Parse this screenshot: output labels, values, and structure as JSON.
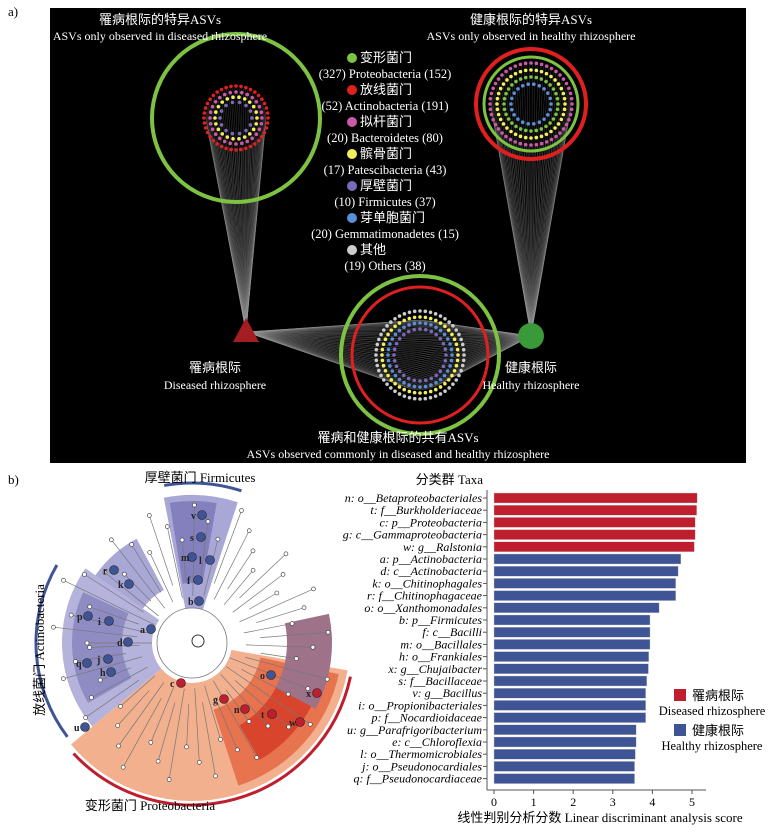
{
  "panel_a": {
    "label": "a)",
    "diseased_specific_title_cn": "罹病根际的特异ASVs",
    "diseased_specific_title_en": "ASVs only observed in diseased rhizosphere",
    "healthy_specific_title_cn": "健康根际的特异ASVs",
    "healthy_specific_title_en": "ASVs only observed in healthy rhizosphere",
    "diseased_node_cn": "罹病根际",
    "diseased_node_en": "Diseased rhizosphere",
    "healthy_node_cn": "健康根际",
    "healthy_node_en": "Healthy rhizosphere",
    "shared_title_cn": "罹病和健康根际的共有ASVs",
    "shared_title_en": "ASVs observed commonly in diseased and healthy rhizosphere",
    "legend": [
      {
        "cn": "变形菌门",
        "en": "(327) Proteobacteria (152)",
        "color": "#7dc242"
      },
      {
        "cn": "放线菌门",
        "en": "(52) Actinobacteria (191)",
        "color": "#e02020"
      },
      {
        "cn": "拟杆菌门",
        "en": "(20) Bacteroidetes (80)",
        "color": "#c85aa8"
      },
      {
        "cn": "髌骨菌门",
        "en": "(17) Patescibacteria (43)",
        "color": "#f2ef5a"
      },
      {
        "cn": "厚壁菌门",
        "en": "(10) Firmicutes (37)",
        "color": "#7a6ab8"
      },
      {
        "cn": "芽单胞菌门",
        "en": "(20) Gemmatimonadetes (15)",
        "color": "#5b8ed8"
      },
      {
        "cn": "其他",
        "en": "(19) Others (38)",
        "color": "#cccccc"
      }
    ]
  },
  "panel_b": {
    "label": "b)",
    "firmicutes_label": "厚壁菌门 Firmicutes",
    "actinobacteria_label": "放线菌门 Actinobacteria",
    "proteobacteria_label": "变形菌门 Proteobacteria",
    "clade_letters": [
      "a",
      "b",
      "c",
      "d",
      "f",
      "g",
      "h",
      "i",
      "j",
      "k",
      "l",
      "m",
      "n",
      "o",
      "p",
      "q",
      "r",
      "s",
      "t",
      "u",
      "v",
      "w",
      "x"
    ],
    "colors": {
      "diseased": "#bf1e2e",
      "healthy": "#3f5494"
    }
  },
  "chart_data": {
    "type": "bar",
    "orientation": "horizontal",
    "title": "分类群 Taxa",
    "xlabel": "线性判别分析分数 Linear discriminant analysis score",
    "xlim": [
      0,
      5.3
    ],
    "xticks": [
      "0",
      "1",
      "2",
      "3",
      "4",
      "5"
    ],
    "legend": [
      {
        "cn": "罹病根际",
        "en": "Diseased rhizosphere",
        "color": "#bf1e2e"
      },
      {
        "cn": "健康根际",
        "en": "Healthy rhizosphere",
        "color": "#3f5494"
      }
    ],
    "legend_position": "right",
    "categories": [
      "n: o__Betaproteobacteriales",
      "t: f__Burkholderiaceae",
      "c: p__Proteobacteria",
      "g: c__Gammaproteobacteria",
      "w: g__Ralstonia",
      "a: p__Actinobacteria",
      "d: c__Actinobacteria",
      "k: o__Chitinophagales",
      "r: f__Chitinophagaceae",
      "o: o__Xanthomonadales",
      "b: p__Firmicutes",
      "f: c__Bacilli",
      "m: o__Bacillales",
      "h: o__Frankiales",
      "x: g__Chujaibacter",
      "s: f__Bacillaceae",
      "v: g__Bacillus",
      "i: o__Propionibacteriales",
      "p: f__Nocardioidaceae",
      "u: g__Parafrigoribacterium",
      "e: c__Chloroflexia",
      "l: o__Thermomicrobiales",
      "j: o__Pseudonocardiales",
      "q: f__Pseudonocardiaceae"
    ],
    "values": [
      5.13,
      5.12,
      5.08,
      5.08,
      5.06,
      4.72,
      4.65,
      4.59,
      4.59,
      4.17,
      3.94,
      3.94,
      3.94,
      3.91,
      3.9,
      3.86,
      3.83,
      3.83,
      3.83,
      3.59,
      3.59,
      3.57,
      3.55,
      3.55
    ],
    "groups": [
      "diseased",
      "diseased",
      "diseased",
      "diseased",
      "diseased",
      "healthy",
      "healthy",
      "healthy",
      "healthy",
      "healthy",
      "healthy",
      "healthy",
      "healthy",
      "healthy",
      "healthy",
      "healthy",
      "healthy",
      "healthy",
      "healthy",
      "healthy",
      "healthy",
      "healthy",
      "healthy",
      "healthy"
    ]
  }
}
